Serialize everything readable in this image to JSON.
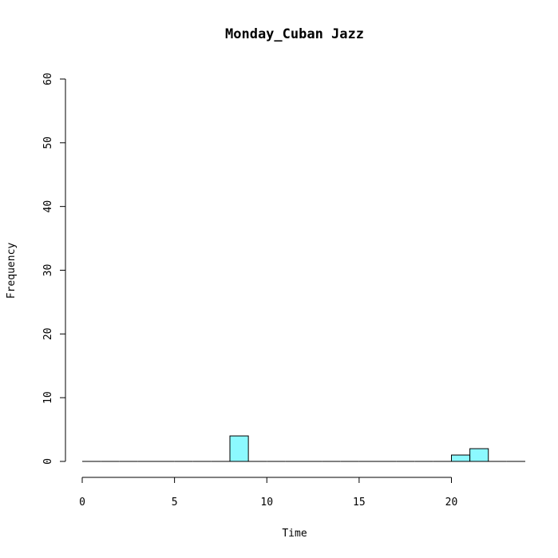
{
  "chart_data": {
    "type": "bar",
    "title": "Monday_Cuban Jazz",
    "xlabel": "Time",
    "ylabel": "Frequency",
    "xlim": [
      0,
      24
    ],
    "ylim": [
      0,
      60
    ],
    "x_ticks": [
      0,
      5,
      10,
      15,
      20
    ],
    "y_ticks": [
      0,
      10,
      20,
      30,
      40,
      50,
      60
    ],
    "bin_width": 1,
    "bins": [
      {
        "start": 0,
        "end": 1,
        "count": 0
      },
      {
        "start": 1,
        "end": 2,
        "count": 0
      },
      {
        "start": 2,
        "end": 3,
        "count": 0
      },
      {
        "start": 3,
        "end": 4,
        "count": 0
      },
      {
        "start": 4,
        "end": 5,
        "count": 0
      },
      {
        "start": 5,
        "end": 6,
        "count": 0
      },
      {
        "start": 6,
        "end": 7,
        "count": 0
      },
      {
        "start": 7,
        "end": 8,
        "count": 0
      },
      {
        "start": 8,
        "end": 9,
        "count": 4
      },
      {
        "start": 9,
        "end": 10,
        "count": 0
      },
      {
        "start": 10,
        "end": 11,
        "count": 0
      },
      {
        "start": 11,
        "end": 12,
        "count": 0
      },
      {
        "start": 12,
        "end": 13,
        "count": 0
      },
      {
        "start": 13,
        "end": 14,
        "count": 0
      },
      {
        "start": 14,
        "end": 15,
        "count": 0
      },
      {
        "start": 15,
        "end": 16,
        "count": 0
      },
      {
        "start": 16,
        "end": 17,
        "count": 0
      },
      {
        "start": 17,
        "end": 18,
        "count": 0
      },
      {
        "start": 18,
        "end": 19,
        "count": 0
      },
      {
        "start": 19,
        "end": 20,
        "count": 0
      },
      {
        "start": 20,
        "end": 21,
        "count": 1
      },
      {
        "start": 21,
        "end": 22,
        "count": 2
      },
      {
        "start": 22,
        "end": 23,
        "count": 0
      },
      {
        "start": 23,
        "end": 24,
        "count": 0
      }
    ],
    "bar_color": "#8cf9ff",
    "grid": false,
    "legend": "none"
  }
}
